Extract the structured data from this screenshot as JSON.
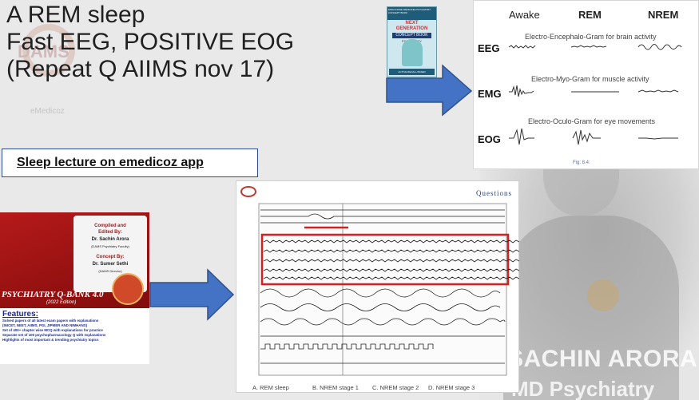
{
  "headline": {
    "line1": "A REM sleep",
    "line2": "Fast EEG, POSITIVE EOG",
    "line3": "(Repeat Q AIIMS nov 17)"
  },
  "watermark": {
    "brand": "DAMS",
    "sub": "eMedicoz"
  },
  "concept_book": {
    "top_text": "ENDOCRINE MEDICINE PSYCHIATRY CONCEPT BOOK",
    "title_line1": "NEXT",
    "title_line2": "GENERATION",
    "badge": "CONCEPT BOOK",
    "subject": "PSYCHIATRY",
    "footer": "ACTIVE RECALL BASED"
  },
  "eeg_figure": {
    "columns": [
      "Awake",
      "REM",
      "NREM"
    ],
    "rows": [
      {
        "label": "EEG",
        "caption": "Electro-Encephalo-Gram for brain activity"
      },
      {
        "label": "EMG",
        "caption": "Electro-Myo-Gram for muscle activity"
      },
      {
        "label": "EOG",
        "caption": "Electro-Oculo-Gram for eye movements"
      }
    ],
    "fig_label": "Fig: 8.4:"
  },
  "lecture_link": "Sleep lecture on emedicoz app",
  "qbank": {
    "compiled_label": "Compiled and",
    "edited_label": "Edited By:",
    "compiler": "Dr. Sachin Arora",
    "compiler_role": "(DAMS Psychiatry Faculty)",
    "concept_label": "Concept By:",
    "concept_author": "Dr. Sumer Sethi",
    "concept_role": "(DAMS Director)",
    "title": "PSYCHIATRY Q-BANK 4.0",
    "edition": "(2022 Edition)",
    "features_heading": "Features:",
    "features": [
      "Solved papers of all latest exam papers with explanations",
      "(INICET, NEET, AIIMS, PGI, JIPMER AND NIMHANS)",
      "Set of 400+ chapter wise MCQ with explanations for practice",
      "Separate set of 100 psychopharmacology Q with explanations",
      "Highlights of most important & trending psychiatry topics"
    ]
  },
  "eeg_page": {
    "header": "Questions",
    "options": [
      "A. REM sleep",
      "B. NREM stage 1",
      "C. NREM stage 2",
      "D. NREM stage 3"
    ]
  },
  "presenter": {
    "name": "SACHIN ARORA",
    "role": "MD Psychiatry"
  },
  "colors": {
    "arrow": "#4472c4",
    "arrow_border": "#2f528f",
    "highlight": "#d32020",
    "page_bg": "#e9e9e9"
  }
}
